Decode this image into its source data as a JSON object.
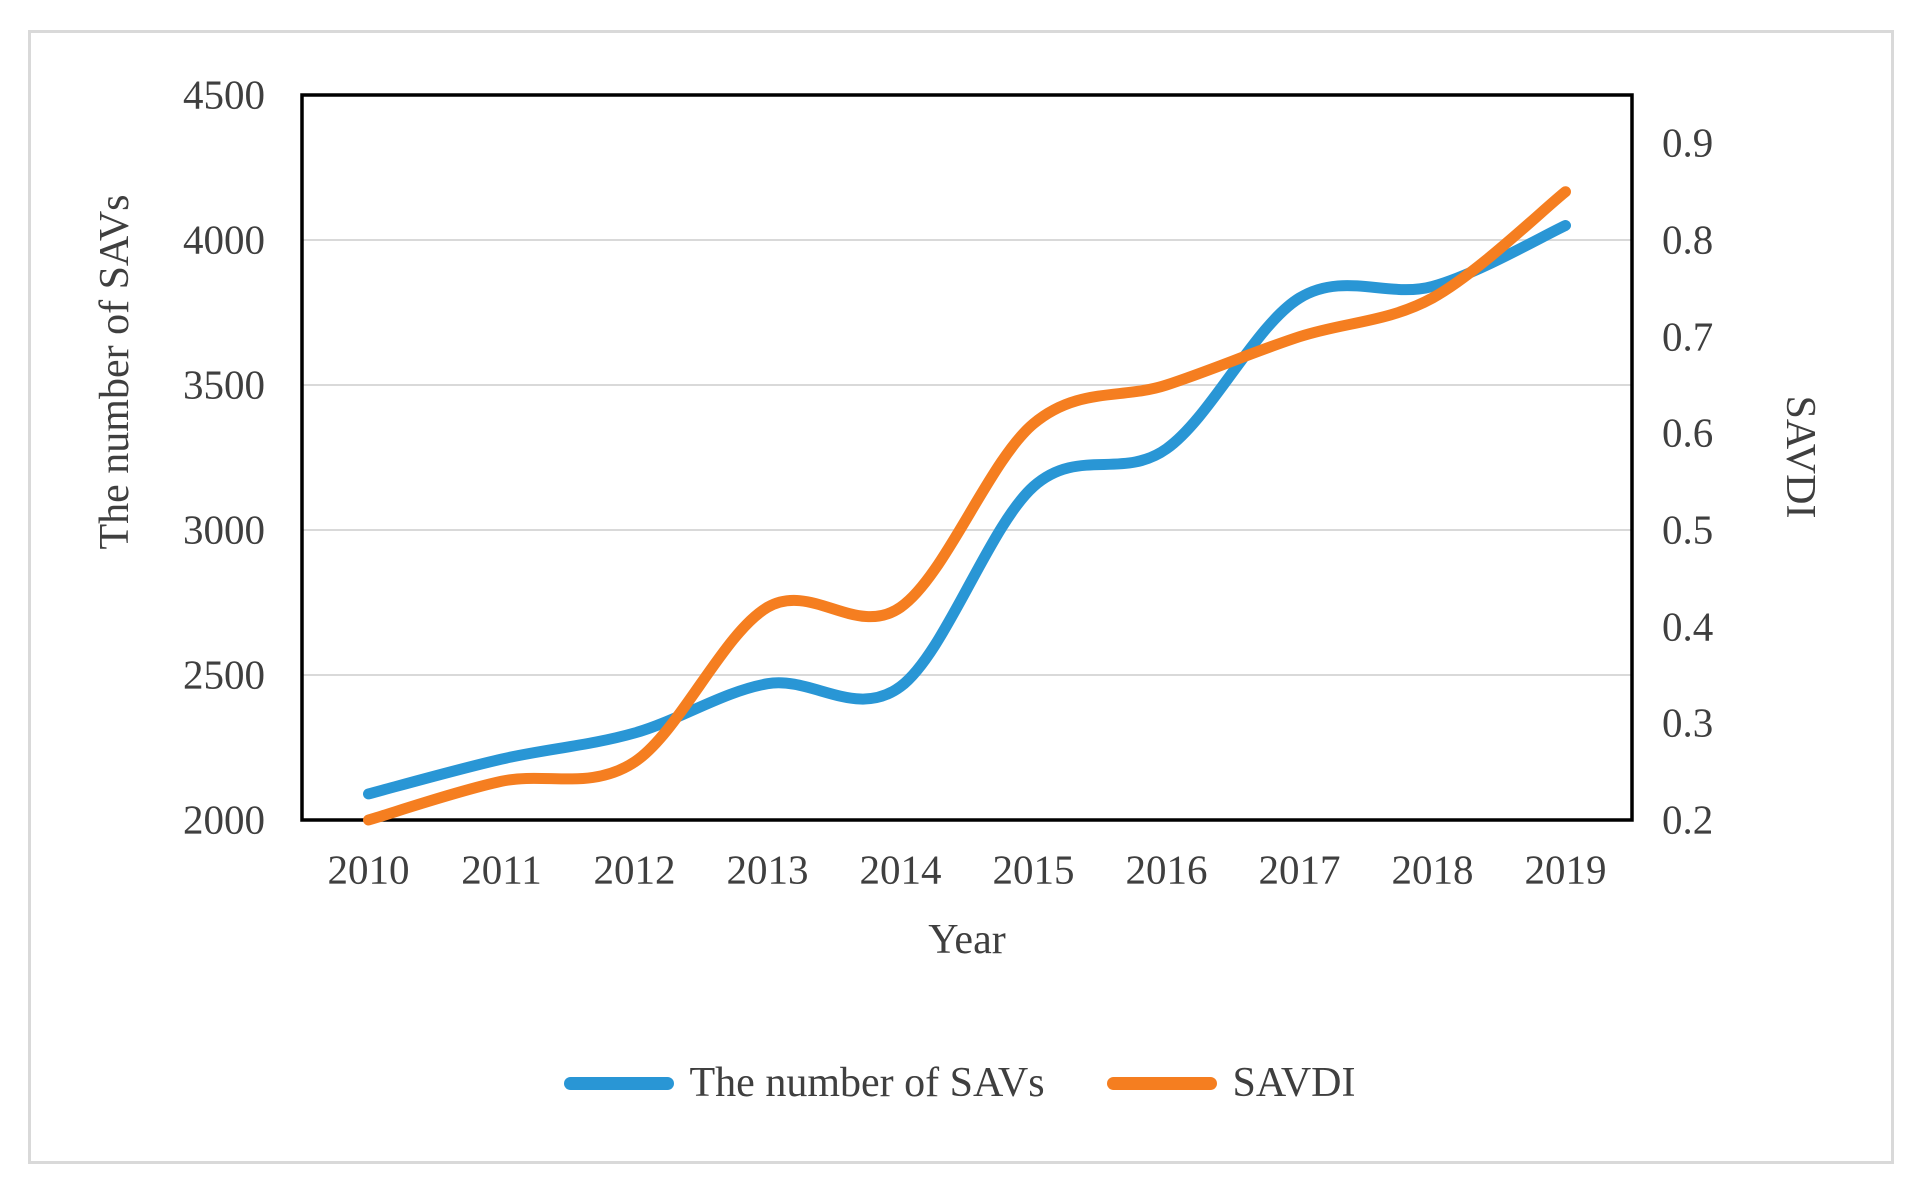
{
  "chart_data": {
    "type": "line",
    "title": "",
    "categories": [
      "2010",
      "2011",
      "2012",
      "2013",
      "2014",
      "2015",
      "2016",
      "2017",
      "2018",
      "2019"
    ],
    "series": [
      {
        "name": "The number of SAVs",
        "axis": "left",
        "color": "#2996D5",
        "values": [
          2090,
          2210,
          2300,
          2470,
          2460,
          3150,
          3280,
          3800,
          3840,
          4050
        ]
      },
      {
        "name": "SAVDI",
        "axis": "right",
        "color": "#F57E20",
        "values": [
          0.2,
          0.24,
          0.26,
          0.42,
          0.42,
          0.61,
          0.65,
          0.7,
          0.74,
          0.85
        ]
      }
    ],
    "x_axis": {
      "title": "Year"
    },
    "left_axis": {
      "title": "The number of SAVs",
      "min": 2000,
      "max": 4500,
      "ticks": [
        {
          "label": "2000",
          "value": 2000
        },
        {
          "label": "2500",
          "value": 2500
        },
        {
          "label": "3000",
          "value": 3000
        },
        {
          "label": "3500",
          "value": 3500
        },
        {
          "label": "4000",
          "value": 4000
        },
        {
          "label": "4500",
          "value": 4500
        }
      ]
    },
    "right_axis": {
      "title": "SAVDI",
      "min": 0.2,
      "max": 0.95,
      "ticks": [
        {
          "label": "0.2",
          "value": 0.2
        },
        {
          "label": "0.3",
          "value": 0.3
        },
        {
          "label": "0.4",
          "value": 0.4
        },
        {
          "label": "0.5",
          "value": 0.5
        },
        {
          "label": "0.6",
          "value": 0.6
        },
        {
          "label": "0.7",
          "value": 0.7
        },
        {
          "label": "0.8",
          "value": 0.8
        },
        {
          "label": "0.9",
          "value": 0.9
        }
      ]
    },
    "gridline_values": [
      2500,
      3000,
      3500,
      4000
    ],
    "legend_position": "bottom",
    "grid": true,
    "smooth_lines": true,
    "colors": {
      "gridline": "#D9D9D9",
      "frame": "#000000",
      "text": "#3F3F3F",
      "figure_border": "#D9D9D9"
    }
  }
}
